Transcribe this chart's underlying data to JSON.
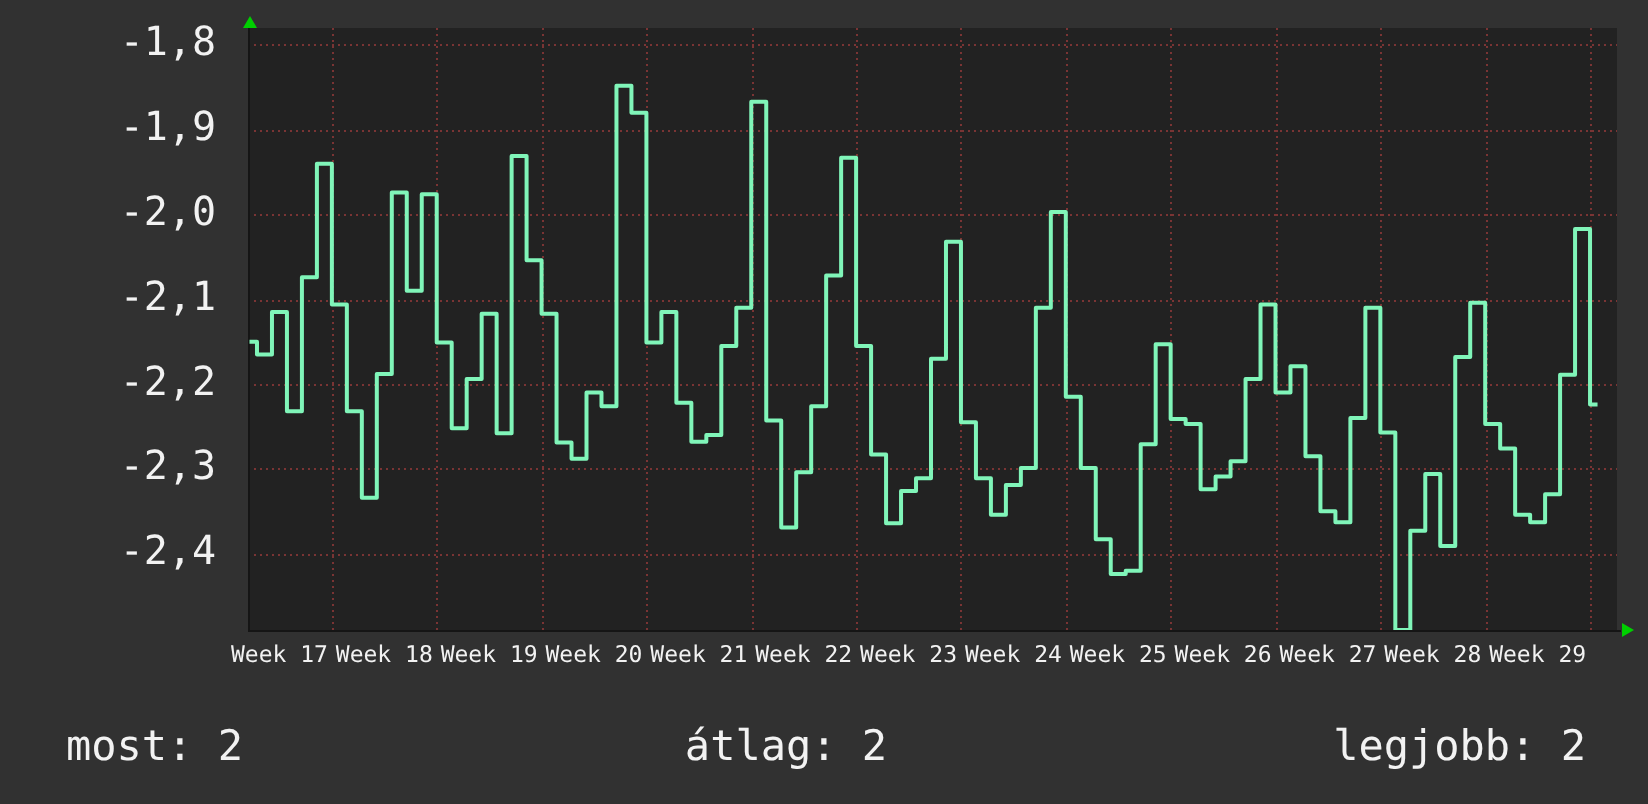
{
  "chart_data": {
    "type": "step",
    "color": "#80f5b9",
    "categories": [
      null,
      null,
      "Week 17",
      null,
      null,
      null,
      null,
      null,
      null,
      "Week 18",
      null,
      null,
      null,
      null,
      null,
      null,
      "Week 19",
      null,
      null,
      null,
      null,
      null,
      null,
      "Week 20",
      null,
      null,
      null,
      null,
      null,
      null,
      "Week 21",
      null,
      null,
      null,
      null,
      null,
      null,
      "Week 22",
      null,
      null,
      null,
      null,
      null,
      null,
      "Week 23",
      null,
      null,
      null,
      null,
      null,
      null,
      "Week 24",
      null,
      null,
      null,
      null,
      null,
      null,
      "Week 25",
      null,
      null,
      null,
      null,
      null,
      null,
      "Week 26",
      null,
      null,
      null,
      null,
      null,
      null,
      "Week 27",
      null,
      null,
      null,
      null,
      null,
      null,
      "Week 28",
      null,
      null,
      null,
      null,
      null,
      null,
      "Week 29",
      null,
      null,
      null,
      null
    ],
    "values": [
      -2.15,
      -2.165,
      -2.115,
      -2.232,
      -2.074,
      -1.94,
      -2.106,
      -2.232,
      -2.334,
      -2.188,
      -1.974,
      -2.09,
      -1.976,
      -2.151,
      -2.252,
      -2.194,
      -2.117,
      -2.258,
      -1.931,
      -2.054,
      -2.117,
      -2.269,
      -2.288,
      -2.21,
      -2.226,
      -1.848,
      -1.88,
      -2.151,
      -2.115,
      -2.222,
      -2.268,
      -2.26,
      -2.155,
      -2.11,
      -1.867,
      -2.243,
      -2.369,
      -2.304,
      -2.226,
      -2.072,
      -1.933,
      -2.155,
      -2.283,
      -2.364,
      -2.326,
      -2.311,
      -2.17,
      -2.032,
      -2.245,
      -2.311,
      -2.354,
      -2.319,
      -2.299,
      -2.11,
      -1.997,
      -2.215,
      -2.299,
      -2.383,
      -2.424,
      -2.42,
      -2.271,
      -2.153,
      -2.241,
      -2.247,
      -2.324,
      -2.309,
      -2.291,
      -2.194,
      -2.106,
      -2.21,
      -2.179,
      -2.285,
      -2.35,
      -2.363,
      -2.24,
      -2.11,
      -2.257,
      -2.49,
      -2.373,
      -2.306,
      -2.391,
      -2.168,
      -2.104,
      -2.247,
      -2.276,
      -2.354,
      -2.363,
      -2.33,
      -2.189,
      -2.017,
      -2.224
    ],
    "ylim": [
      -2.49,
      -1.78
    ],
    "yticks": [
      {
        "value": -1.8,
        "label": "-1,8"
      },
      {
        "value": -1.9,
        "label": "-1,9"
      },
      {
        "value": -2.0,
        "label": "-2,0"
      },
      {
        "value": -2.1,
        "label": "-2,1"
      },
      {
        "value": -2.2,
        "label": "-2,2"
      },
      {
        "value": -2.3,
        "label": "-2,3"
      },
      {
        "value": -2.4,
        "label": "-2,4"
      }
    ],
    "grid": true,
    "annotations": [
      "most: 2",
      "átlag: 2",
      "legjobb: 2"
    ]
  }
}
